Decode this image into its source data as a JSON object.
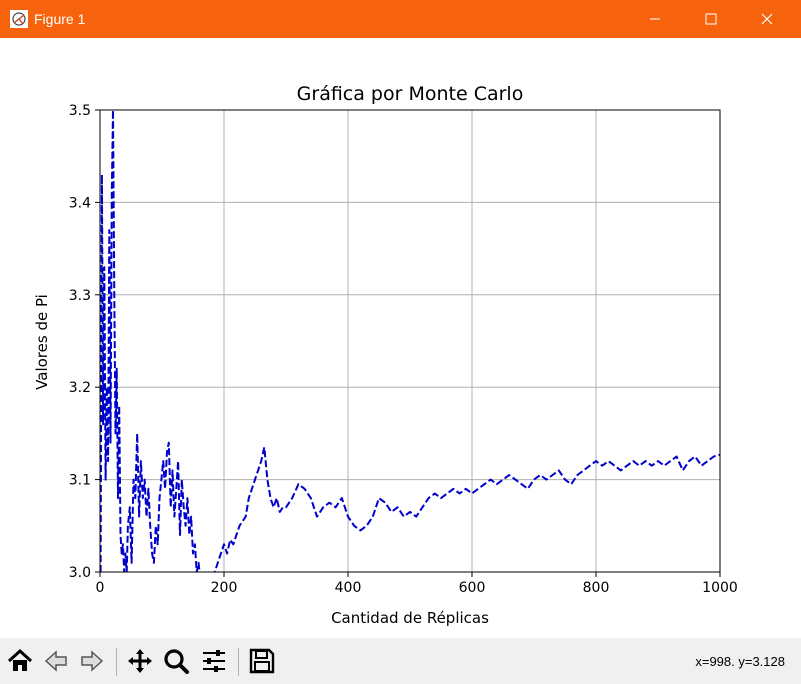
{
  "window": {
    "title": "Figure 1",
    "accent_color": "#f7630c",
    "icons": [
      "figure-app-icon",
      "minimize-icon",
      "maximize-icon",
      "close-icon"
    ]
  },
  "toolbar": {
    "buttons": [
      {
        "name": "home",
        "icon": "home-icon"
      },
      {
        "name": "back",
        "icon": "back-arrow-icon"
      },
      {
        "name": "forward",
        "icon": "forward-arrow-icon"
      },
      {
        "name": "pan",
        "icon": "pan-icon"
      },
      {
        "name": "zoom",
        "icon": "zoom-icon"
      },
      {
        "name": "configure-subplots",
        "icon": "sliders-icon"
      },
      {
        "name": "save",
        "icon": "save-icon"
      }
    ],
    "coordinates": "x=998. y=3.128"
  },
  "chart_data": {
    "type": "line",
    "title": "Gráfica por Monte Carlo",
    "xlabel": "Cantidad de Réplicas",
    "ylabel": "Valores de Pi",
    "xlim": [
      0,
      1000
    ],
    "ylim": [
      3.0,
      3.5
    ],
    "xticks": [
      0,
      200,
      400,
      600,
      800,
      1000
    ],
    "xtick_labels": [
      "0",
      "200",
      "400",
      "600",
      "800",
      "1000"
    ],
    "yticks": [
      3.0,
      3.1,
      3.2,
      3.3,
      3.4,
      3.5
    ],
    "ytick_labels": [
      "3.0",
      "3.1",
      "3.2",
      "3.3",
      "3.4",
      "3.5"
    ],
    "grid": true,
    "series": [
      {
        "color": "#0000cc",
        "linestyle": "dashed",
        "x": [
          1,
          3,
          5,
          7,
          9,
          11,
          13,
          15,
          17,
          19,
          21,
          23,
          25,
          27,
          29,
          31,
          33,
          35,
          37,
          39,
          41,
          43,
          45,
          48,
          51,
          54,
          57,
          60,
          63,
          66,
          69,
          72,
          75,
          78,
          81,
          84,
          87,
          90,
          93,
          96,
          99,
          102,
          105,
          108,
          111,
          114,
          117,
          120,
          123,
          126,
          129,
          132,
          135,
          138,
          141,
          144,
          147,
          150,
          153,
          156,
          159,
          162,
          185,
          190,
          195,
          200,
          205,
          210,
          215,
          220,
          225,
          230,
          235,
          240,
          245,
          250,
          255,
          260,
          265,
          270,
          275,
          280,
          285,
          290,
          295,
          300,
          305,
          310,
          320,
          330,
          340,
          350,
          360,
          370,
          380,
          390,
          400,
          410,
          420,
          430,
          440,
          450,
          460,
          470,
          480,
          490,
          500,
          510,
          520,
          530,
          540,
          550,
          560,
          570,
          580,
          590,
          600,
          610,
          620,
          630,
          640,
          650,
          660,
          670,
          680,
          690,
          700,
          710,
          720,
          730,
          740,
          750,
          760,
          770,
          780,
          790,
          800,
          810,
          820,
          830,
          840,
          850,
          860,
          870,
          880,
          890,
          900,
          910,
          920,
          930,
          940,
          950,
          960,
          970,
          980,
          990,
          1000
        ],
        "y": [
          3.0,
          3.43,
          3.16,
          3.33,
          3.1,
          3.2,
          3.12,
          3.37,
          3.14,
          3.41,
          3.5,
          3.3,
          3.15,
          3.22,
          3.08,
          3.18,
          3.04,
          3.02,
          3.03,
          3.0,
          3.02,
          3.0,
          3.05,
          3.07,
          3.01,
          3.1,
          3.08,
          3.15,
          3.06,
          3.12,
          3.08,
          3.1,
          3.06,
          3.09,
          3.05,
          3.02,
          3.01,
          3.05,
          3.03,
          3.08,
          3.1,
          3.12,
          3.09,
          3.13,
          3.14,
          3.07,
          3.11,
          3.06,
          3.09,
          3.12,
          3.04,
          3.1,
          3.07,
          3.05,
          3.08,
          3.04,
          3.06,
          3.02,
          3.03,
          3.0,
          3.01,
          2.99,
          3.0,
          3.01,
          3.02,
          3.03,
          3.02,
          3.035,
          3.03,
          3.04,
          3.05,
          3.055,
          3.06,
          3.08,
          3.09,
          3.1,
          3.11,
          3.12,
          3.135,
          3.1,
          3.08,
          3.07,
          3.08,
          3.065,
          3.07,
          3.07,
          3.075,
          3.08,
          3.095,
          3.09,
          3.08,
          3.06,
          3.07,
          3.075,
          3.07,
          3.08,
          3.06,
          3.05,
          3.045,
          3.05,
          3.06,
          3.08,
          3.075,
          3.065,
          3.07,
          3.06,
          3.065,
          3.06,
          3.07,
          3.08,
          3.085,
          3.08,
          3.085,
          3.09,
          3.085,
          3.09,
          3.085,
          3.09,
          3.095,
          3.1,
          3.095,
          3.1,
          3.105,
          3.1,
          3.095,
          3.09,
          3.1,
          3.105,
          3.1,
          3.105,
          3.11,
          3.1,
          3.095,
          3.105,
          3.11,
          3.115,
          3.12,
          3.115,
          3.12,
          3.115,
          3.11,
          3.115,
          3.12,
          3.115,
          3.12,
          3.115,
          3.12,
          3.115,
          3.12,
          3.125,
          3.11,
          3.12,
          3.125,
          3.115,
          3.12,
          3.125,
          3.127
        ]
      }
    ]
  }
}
